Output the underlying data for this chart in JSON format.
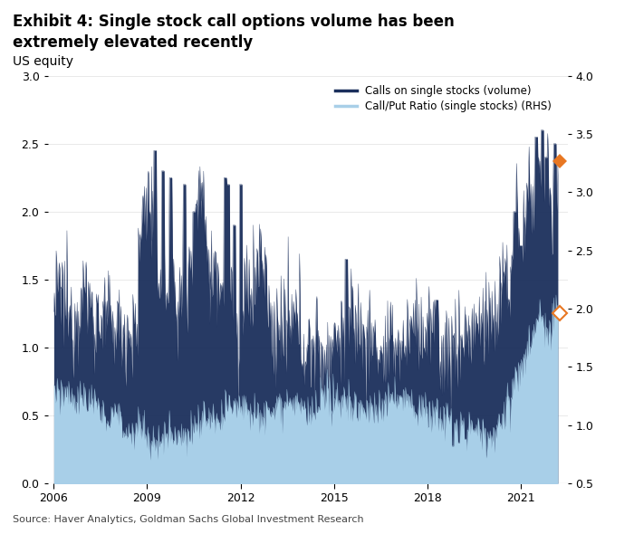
{
  "title_line1": "Exhibit 4: Single stock call options volume has been",
  "title_line2": "extremely elevated recently",
  "subtitle": "US equity",
  "source": "Source: Haver Analytics, Goldman Sachs Global Investment Research",
  "legend_label1": "Calls on single stocks (volume)",
  "legend_label2": "Call/Put Ratio (single stocks) (RHS)",
  "color_dark": "#1b2f5c",
  "color_light": "#a8cfe8",
  "color_marker_fill": "#e87722",
  "color_marker_open": "#e87722",
  "ylim_left": [
    0.0,
    3.0
  ],
  "ylim_right": [
    0.5,
    4.0
  ],
  "yticks_left": [
    0.0,
    0.5,
    1.0,
    1.5,
    2.0,
    2.5,
    3.0
  ],
  "yticks_right": [
    0.5,
    1.0,
    1.5,
    2.0,
    2.5,
    3.0,
    3.5,
    4.0
  ],
  "xticks": [
    2006,
    2009,
    2012,
    2015,
    2018,
    2021
  ],
  "xlim": [
    2005.8,
    2022.5
  ],
  "background_color": "#ffffff",
  "grid_color": "#cccccc",
  "title_fontsize": 12,
  "subtitle_fontsize": 10,
  "tick_fontsize": 9,
  "source_fontsize": 8
}
